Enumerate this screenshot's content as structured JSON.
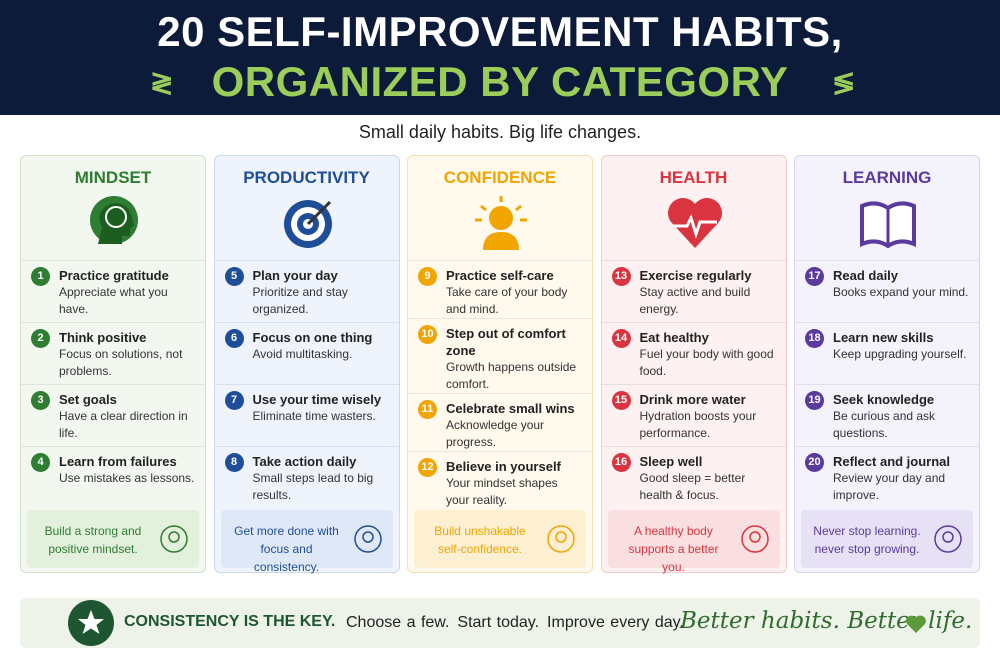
{
  "header": {
    "title_line1": "20 SELF-IMPROVEMENT HABITS,",
    "title_line2": "ORGANIZED BY CATEGORY"
  },
  "subtitle": "Small daily habits. Big life changes.",
  "columns": [
    {
      "name": "MINDSET",
      "habits": [
        {
          "number": 1,
          "title": "Practice gratitude",
          "description": "Appreciate what you have."
        },
        {
          "number": 2,
          "title": "Think positive",
          "description": "Focus on solutions, not problems."
        },
        {
          "number": 3,
          "title": "Set goals",
          "description": "Have a clear direction in life."
        },
        {
          "number": 4,
          "title": "Learn from failures",
          "description": "Use mistakes as lessons."
        }
      ],
      "note": "Build a strong and positive mindset."
    },
    {
      "name": "PRODUCTIVITY",
      "habits": [
        {
          "number": 5,
          "title": "Plan your day",
          "description": "Prioritize and stay organized."
        },
        {
          "number": 6,
          "title": "Focus on one thing",
          "description": "Avoid multitasking."
        },
        {
          "number": 7,
          "title": "Use your time wisely",
          "description": "Eliminate time wasters."
        },
        {
          "number": 8,
          "title": "Take action daily",
          "description": "Small steps lead to big results."
        }
      ],
      "note": "Get more done with focus and consistency."
    },
    {
      "name": "CONFIDENCE",
      "habits": [
        {
          "number": 9,
          "title": "Practice self-care",
          "description": "Take care of your body and mind."
        },
        {
          "number": 10,
          "title": "Step out of comfort zone",
          "description": "Growth happens outside comfort."
        },
        {
          "number": 11,
          "title": "Celebrate small wins",
          "description": "Acknowledge your progress."
        },
        {
          "number": 12,
          "title": "Believe in yourself",
          "description": "Your mindset shapes your reality."
        }
      ],
      "note": "Build unshakable self-confidence."
    },
    {
      "name": "HEALTH",
      "habits": [
        {
          "number": 13,
          "title": "Exercise regularly",
          "description": "Stay active and build energy."
        },
        {
          "number": 14,
          "title": "Eat healthy",
          "description": "Fuel your body with good food."
        },
        {
          "number": 15,
          "title": "Drink more water",
          "description": "Hydration boosts your performance."
        },
        {
          "number": 16,
          "title": "Sleep well",
          "description": "Good sleep = better health & focus."
        }
      ],
      "note": "A healthy body supports a better you."
    },
    {
      "name": "LEARNING",
      "habits": [
        {
          "number": 17,
          "title": "Read daily",
          "description": "Books expand your mind."
        },
        {
          "number": 18,
          "title": "Learn new skills",
          "description": "Keep upgrading yourself."
        },
        {
          "number": 19,
          "title": "Seek knowledge",
          "description": "Be curious and ask questions."
        },
        {
          "number": 20,
          "title": "Reflect and journal",
          "description": "Review your day and improve."
        }
      ],
      "note": "Never stop learning. never stop growing."
    }
  ],
  "banner": {
    "key": "CONSISTENCY IS THE KEY.",
    "steps": [
      "Choose a few.",
      "Start today.",
      "Improve every day."
    ],
    "motto": "Better habits. Better life."
  }
}
